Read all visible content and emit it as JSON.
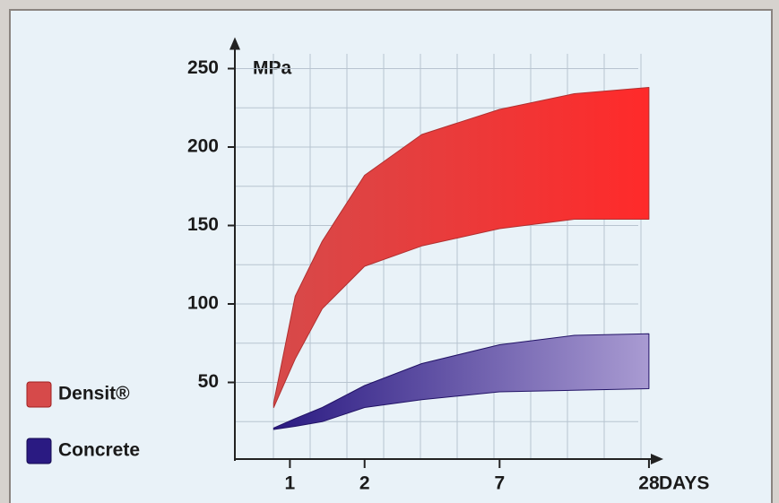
{
  "chart_data": {
    "type": "range-area",
    "y_label": "MPa",
    "x_label": "DAYS",
    "x": [
      0.86,
      1.05,
      1.35,
      2,
      3.4,
      7,
      14,
      28
    ],
    "xscale": "log",
    "xlim": [
      0.6,
      32
    ],
    "xticks": [
      1,
      2,
      7,
      28
    ],
    "ylim": [
      0,
      270
    ],
    "yticks": [
      50,
      100,
      150,
      200,
      250
    ],
    "grid": true,
    "legend": "lower-left",
    "series": [
      {
        "name": "Densit®",
        "color": "#d64a4a",
        "color_end": "#ff2a2a",
        "low": [
          34,
          65,
          97,
          124,
          137,
          148,
          154,
          154
        ],
        "high": [
          37,
          105,
          140,
          182,
          208,
          224,
          234,
          238
        ]
      },
      {
        "name": "Concrete",
        "color": "#2a1a82",
        "color_end": "#a99bd2",
        "low": [
          20,
          22,
          25,
          34,
          39,
          44,
          45,
          46
        ],
        "high": [
          21,
          27,
          34,
          48,
          62,
          74,
          80,
          81
        ]
      }
    ]
  }
}
